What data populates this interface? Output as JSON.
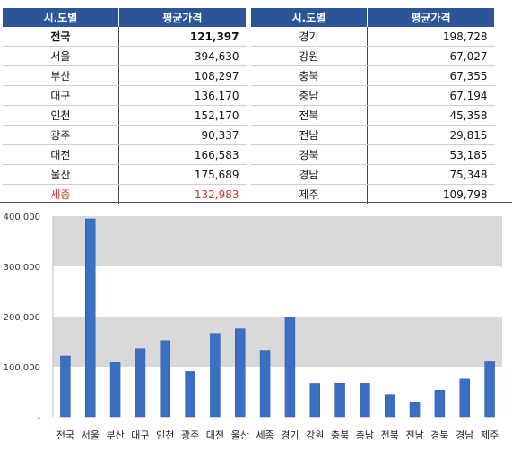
{
  "table": {
    "headers": [
      "시.도별",
      "평균가격",
      "시.도별",
      "평균가격"
    ],
    "left_rows": [
      {
        "region": "전국",
        "price": "121,397",
        "style": "bold"
      },
      {
        "region": "서울",
        "price": "394,630",
        "style": ""
      },
      {
        "region": "부산",
        "price": "108,297",
        "style": ""
      },
      {
        "region": "대구",
        "price": "136,170",
        "style": ""
      },
      {
        "region": "인천",
        "price": "152,170",
        "style": ""
      },
      {
        "region": "광주",
        "price": "90,337",
        "style": ""
      },
      {
        "region": "대전",
        "price": "166,583",
        "style": ""
      },
      {
        "region": "울산",
        "price": "175,689",
        "style": ""
      },
      {
        "region": "세종",
        "price": "132,983",
        "style": "red"
      }
    ],
    "right_rows": [
      {
        "region": "경기",
        "price": "198,728"
      },
      {
        "region": "강원",
        "price": "67,027"
      },
      {
        "region": "충북",
        "price": "67,355"
      },
      {
        "region": "충남",
        "price": "67,194"
      },
      {
        "region": "전북",
        "price": "45,358"
      },
      {
        "region": "전남",
        "price": "29,815"
      },
      {
        "region": "경북",
        "price": "53,185"
      },
      {
        "region": "경남",
        "price": "75,348"
      },
      {
        "region": "제주",
        "price": "109,798"
      }
    ]
  },
  "chart_data": {
    "type": "bar",
    "categories": [
      "전국",
      "서울",
      "부산",
      "대구",
      "인천",
      "광주",
      "대전",
      "울산",
      "세종",
      "경기",
      "강원",
      "충북",
      "충남",
      "전북",
      "전남",
      "경북",
      "경남",
      "제주"
    ],
    "values": [
      121397,
      394630,
      108297,
      136170,
      152170,
      90337,
      166583,
      175689,
      132983,
      198728,
      67027,
      67355,
      67194,
      45358,
      29815,
      53185,
      75348,
      109798
    ],
    "ylim": [
      0,
      400000
    ],
    "yticks": [
      0,
      100000,
      200000,
      300000,
      400000
    ],
    "ytick_labels": [
      "-",
      "100,000",
      "200,000",
      "300,000",
      "400,000"
    ],
    "bar_color": "#3a6fc4",
    "band_color": "#d9d9d9",
    "title": "",
    "xlabel": "",
    "ylabel": ""
  }
}
